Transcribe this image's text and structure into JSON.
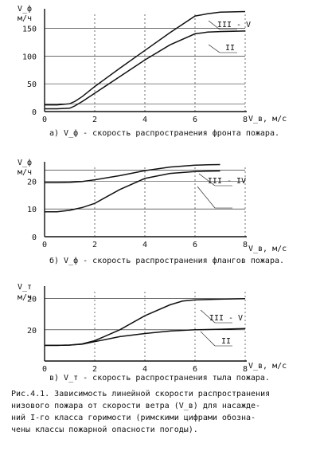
{
  "chart_data": [
    {
      "type": "line",
      "ylabel": "V_ф, м/ч",
      "xlabel": "V_в, м/с",
      "x_ticks": [
        "0",
        "2",
        "4",
        "6",
        "8"
      ],
      "y_ticks": [
        "0",
        "50",
        "100",
        "150"
      ],
      "xlim": [
        0,
        8
      ],
      "ylim": [
        0,
        185
      ],
      "grid": true,
      "series": [
        {
          "name": "III - V",
          "x": [
            0,
            0.5,
            1,
            1.2,
            1.5,
            2,
            3,
            4,
            5,
            6,
            6.5,
            7,
            8
          ],
          "y": [
            12,
            12,
            14,
            18,
            27,
            45,
            78,
            110,
            142,
            172,
            176,
            179,
            180
          ]
        },
        {
          "name": "II",
          "x": [
            0,
            0.5,
            1,
            1.2,
            1.5,
            2,
            3,
            4,
            5,
            6,
            6.5,
            7,
            8
          ],
          "y": [
            5,
            5,
            6,
            10,
            18,
            33,
            63,
            93,
            120,
            140,
            143,
            144,
            145
          ]
        }
      ],
      "caption": "а) V_ф - скорость распространения фронта пожара."
    },
    {
      "type": "line",
      "ylabel": "V_ф, м/ч",
      "xlabel": "V_в, м/с",
      "x_ticks": [
        "0",
        "2",
        "4",
        "6",
        "8"
      ],
      "y_ticks": [
        "0",
        "10",
        "20"
      ],
      "xlim": [
        0,
        8
      ],
      "ylim": [
        0,
        27
      ],
      "grid": true,
      "series": [
        {
          "name": "III - IV",
          "x": [
            0,
            0.5,
            1,
            1.5,
            2,
            3,
            4,
            5,
            6,
            6.5,
            7
          ],
          "y": [
            19.5,
            19.5,
            19.6,
            19.9,
            20.5,
            22,
            23.8,
            25.1,
            25.8,
            25.9,
            26
          ]
        },
        {
          "name": "",
          "x": [
            0,
            0.5,
            1,
            1.5,
            2,
            3,
            4,
            5,
            6,
            6.5,
            7
          ],
          "y": [
            9,
            9,
            9.5,
            10.5,
            12,
            17,
            21,
            22.8,
            23.5,
            23.6,
            23.7
          ]
        }
      ],
      "caption": "б) V_ф - скорость распространения флангов пожара."
    },
    {
      "type": "line",
      "ylabel": "V_т, м/ч",
      "xlabel": "V_в, м/с",
      "x_ticks": [
        "0",
        "2",
        "4",
        "6",
        "8"
      ],
      "y_ticks": [
        "20",
        "20"
      ],
      "xlim": [
        0,
        8
      ],
      "ylim": [
        0,
        24
      ],
      "grid": true,
      "series": [
        {
          "name": "III - V",
          "x": [
            0,
            0.5,
            1,
            1.5,
            2,
            3,
            4,
            5,
            5.5,
            6,
            7,
            8
          ],
          "y": [
            5,
            5,
            5.1,
            5.5,
            6.5,
            10,
            14.5,
            18,
            19.2,
            19.6,
            19.8,
            20
          ]
        },
        {
          "name": "II",
          "x": [
            0,
            0.5,
            1,
            1.5,
            2,
            3,
            4,
            5,
            6,
            7,
            8
          ],
          "y": [
            5,
            5,
            5.1,
            5.4,
            6.2,
            7.8,
            8.8,
            9.6,
            10,
            10.2,
            10.4
          ]
        }
      ],
      "caption": "в) V_т - скорость распространения тыла пожара."
    }
  ],
  "figure_caption": [
    "Рис.4.1. Зависимость линейной скорости распространения",
    "низового пожара от скорости ветра (V_в) для насажде-",
    "ний I-го класса горимости (римскими цифрами обозна-",
    "чены классы пожарной опасности погоды)."
  ]
}
